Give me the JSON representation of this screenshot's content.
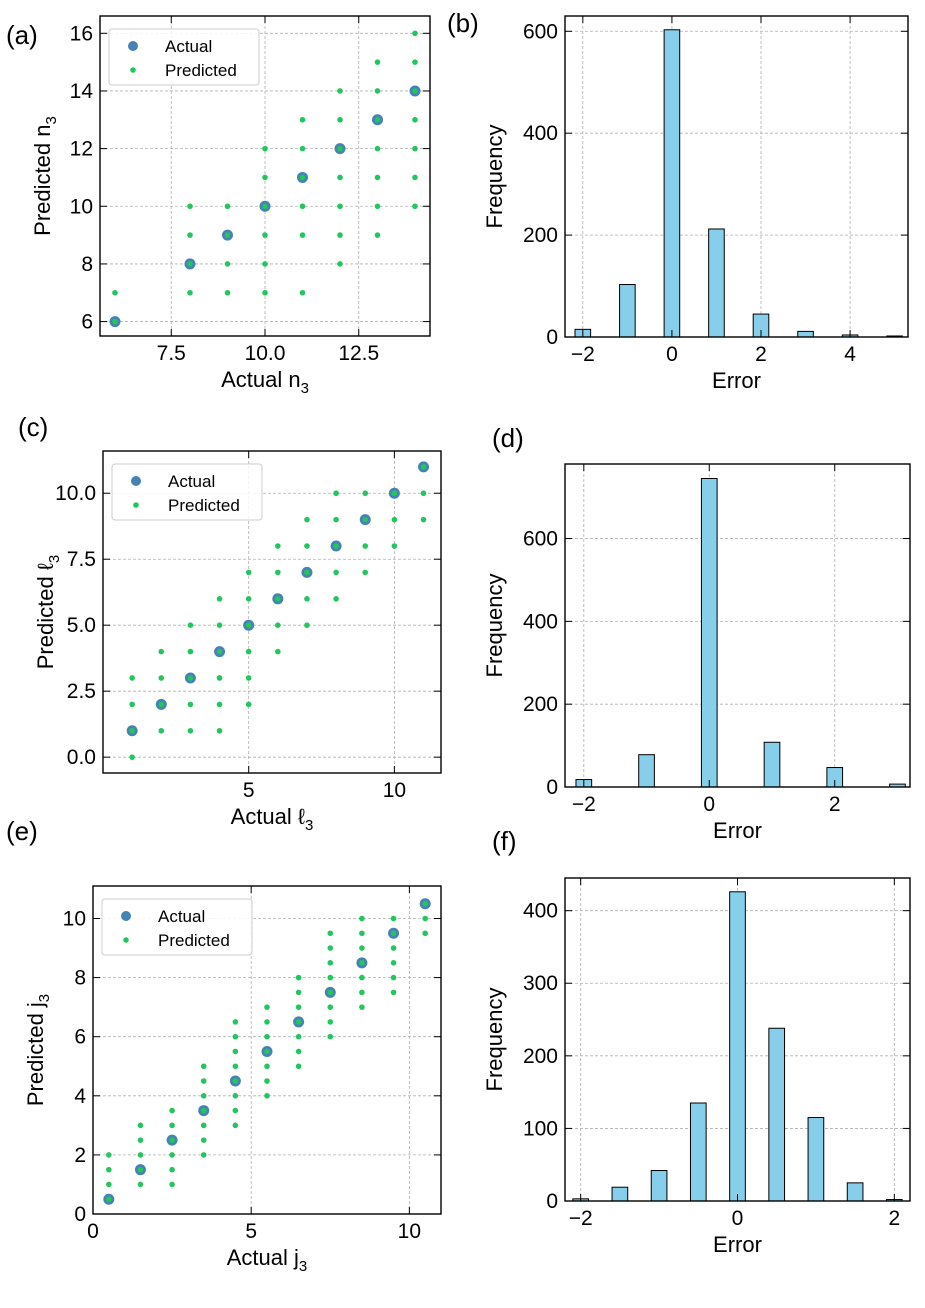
{
  "chart_data": [
    {
      "id": "a",
      "panel_label": "(a)",
      "type": "scatter",
      "xlabel": "Actual n",
      "ylabel": "Predicted n",
      "var_sub": "3",
      "xlim": [
        5.6,
        14.4
      ],
      "ylim": [
        5.5,
        16.6
      ],
      "xticks": [
        7.5,
        10.0,
        12.5
      ],
      "xtick_labels": [
        "7.5",
        "10.0",
        "12.5"
      ],
      "yticks": [
        6,
        8,
        10,
        12,
        14,
        16
      ],
      "ytick_labels": [
        "6",
        "8",
        "10",
        "12",
        "14",
        "16"
      ],
      "legend": [
        "Actual",
        "Predicted"
      ],
      "legend_position": "upper-left",
      "series": [
        {
          "name": "Actual",
          "color": "#4682b4",
          "points": [
            [
              6,
              6
            ],
            [
              8,
              8
            ],
            [
              9,
              9
            ],
            [
              10,
              10
            ],
            [
              11,
              11
            ],
            [
              12,
              12
            ],
            [
              13,
              13
            ],
            [
              14,
              14
            ]
          ]
        },
        {
          "name": "Predicted",
          "color": "#22c55e",
          "points": [
            [
              6,
              6
            ],
            [
              6,
              7
            ],
            [
              8,
              7
            ],
            [
              8,
              8
            ],
            [
              8,
              9
            ],
            [
              8,
              10
            ],
            [
              9,
              7
            ],
            [
              9,
              8
            ],
            [
              9,
              9
            ],
            [
              9,
              10
            ],
            [
              10,
              7
            ],
            [
              10,
              8
            ],
            [
              10,
              9
            ],
            [
              10,
              10
            ],
            [
              10,
              11
            ],
            [
              10,
              12
            ],
            [
              11,
              7
            ],
            [
              11,
              9
            ],
            [
              11,
              10
            ],
            [
              11,
              11
            ],
            [
              11,
              12
            ],
            [
              11,
              13
            ],
            [
              12,
              8
            ],
            [
              12,
              9
            ],
            [
              12,
              10
            ],
            [
              12,
              11
            ],
            [
              12,
              12
            ],
            [
              12,
              13
            ],
            [
              12,
              14
            ],
            [
              13,
              9
            ],
            [
              13,
              10
            ],
            [
              13,
              11
            ],
            [
              13,
              12
            ],
            [
              13,
              13
            ],
            [
              13,
              14
            ],
            [
              13,
              15
            ],
            [
              14,
              10
            ],
            [
              14,
              11
            ],
            [
              14,
              12
            ],
            [
              14,
              13
            ],
            [
              14,
              14
            ],
            [
              14,
              15
            ],
            [
              14,
              16
            ]
          ]
        }
      ]
    },
    {
      "id": "b",
      "panel_label": "(b)",
      "type": "bar",
      "xlabel": "Error",
      "ylabel": "Frequency",
      "xlim": [
        -2.4,
        5.3
      ],
      "ylim": [
        0,
        630
      ],
      "xticks": [
        -2,
        0,
        2,
        4
      ],
      "xtick_labels": [
        "−2",
        "0",
        "2",
        "4"
      ],
      "yticks": [
        0,
        200,
        400,
        600
      ],
      "ytick_labels": [
        "0",
        "200",
        "400",
        "600"
      ],
      "bar_width": 0.35,
      "categories": [
        -2,
        -1,
        0,
        1,
        2,
        3,
        4,
        5
      ],
      "values": [
        15,
        103,
        603,
        212,
        45,
        11,
        4,
        2
      ]
    },
    {
      "id": "c",
      "panel_label": "(c)",
      "type": "scatter",
      "xlabel": "Actual ℓ",
      "ylabel": "Predicted ℓ",
      "var_sub": "3",
      "xlim": [
        0.0,
        11.6
      ],
      "ylim": [
        -0.6,
        11.6
      ],
      "xticks": [
        5,
        10
      ],
      "xtick_labels": [
        "5",
        "10"
      ],
      "yticks": [
        0.0,
        2.5,
        5.0,
        7.5,
        10.0
      ],
      "ytick_labels": [
        "0.0",
        "2.5",
        "5.0",
        "7.5",
        "10.0"
      ],
      "legend": [
        "Actual",
        "Predicted"
      ],
      "legend_position": "upper-left",
      "series": [
        {
          "name": "Actual",
          "color": "#4682b4",
          "points": [
            [
              1,
              1
            ],
            [
              2,
              2
            ],
            [
              3,
              3
            ],
            [
              4,
              4
            ],
            [
              5,
              5
            ],
            [
              6,
              6
            ],
            [
              7,
              7
            ],
            [
              8,
              8
            ],
            [
              9,
              9
            ],
            [
              10,
              10
            ],
            [
              11,
              11
            ]
          ]
        },
        {
          "name": "Predicted",
          "color": "#22c55e",
          "points": [
            [
              1,
              0
            ],
            [
              1,
              1
            ],
            [
              1,
              2
            ],
            [
              1,
              3
            ],
            [
              2,
              1
            ],
            [
              2,
              2
            ],
            [
              2,
              3
            ],
            [
              2,
              4
            ],
            [
              3,
              1
            ],
            [
              3,
              2
            ],
            [
              3,
              3
            ],
            [
              3,
              4
            ],
            [
              3,
              5
            ],
            [
              4,
              1
            ],
            [
              4,
              2
            ],
            [
              4,
              3
            ],
            [
              4,
              4
            ],
            [
              4,
              5
            ],
            [
              4,
              6
            ],
            [
              5,
              2
            ],
            [
              5,
              3
            ],
            [
              5,
              4
            ],
            [
              5,
              5
            ],
            [
              5,
              6
            ],
            [
              5,
              7
            ],
            [
              6,
              4
            ],
            [
              6,
              5
            ],
            [
              6,
              6
            ],
            [
              6,
              7
            ],
            [
              6,
              8
            ],
            [
              7,
              5
            ],
            [
              7,
              6
            ],
            [
              7,
              7
            ],
            [
              7,
              8
            ],
            [
              7,
              9
            ],
            [
              8,
              6
            ],
            [
              8,
              7
            ],
            [
              8,
              8
            ],
            [
              8,
              9
            ],
            [
              8,
              10
            ],
            [
              9,
              7
            ],
            [
              9,
              8
            ],
            [
              9,
              9
            ],
            [
              9,
              10
            ],
            [
              10,
              8
            ],
            [
              10,
              9
            ],
            [
              10,
              10
            ],
            [
              11,
              9
            ],
            [
              11,
              10
            ],
            [
              11,
              11
            ]
          ]
        }
      ]
    },
    {
      "id": "d",
      "panel_label": "(d)",
      "type": "bar",
      "xlabel": "Error",
      "ylabel": "Frequency",
      "xlim": [
        -2.3,
        3.2
      ],
      "ylim": [
        0,
        780
      ],
      "xticks": [
        -2,
        0,
        2
      ],
      "xtick_labels": [
        "−2",
        "0",
        "2"
      ],
      "yticks": [
        0,
        200,
        400,
        600
      ],
      "ytick_labels": [
        "0",
        "200",
        "400",
        "600"
      ],
      "bar_width": 0.25,
      "categories": [
        -2,
        -1,
        0,
        1,
        2,
        3
      ],
      "values": [
        18,
        78,
        745,
        108,
        47,
        7
      ]
    },
    {
      "id": "e",
      "panel_label": "(e)",
      "type": "scatter",
      "xlabel": "Actual j",
      "ylabel": "Predicted j",
      "var_sub": "3",
      "xlim": [
        0,
        11
      ],
      "ylim": [
        0,
        11.1
      ],
      "xticks": [
        0,
        5,
        10
      ],
      "xtick_labels": [
        "0",
        "5",
        "10"
      ],
      "yticks": [
        0,
        2,
        4,
        6,
        8,
        10
      ],
      "ytick_labels": [
        "0",
        "2",
        "4",
        "6",
        "8",
        "10"
      ],
      "legend": [
        "Actual",
        "Predicted"
      ],
      "legend_position": "upper-left",
      "series": [
        {
          "name": "Actual",
          "color": "#4682b4",
          "points": [
            [
              0.5,
              0.5
            ],
            [
              1.5,
              1.5
            ],
            [
              2.5,
              2.5
            ],
            [
              3.5,
              3.5
            ],
            [
              4.5,
              4.5
            ],
            [
              5.5,
              5.5
            ],
            [
              6.5,
              6.5
            ],
            [
              7.5,
              7.5
            ],
            [
              8.5,
              8.5
            ],
            [
              9.5,
              9.5
            ],
            [
              10.5,
              10.5
            ]
          ]
        },
        {
          "name": "Predicted",
          "color": "#22c55e",
          "points": [
            [
              0.5,
              0.5
            ],
            [
              0.5,
              1.0
            ],
            [
              0.5,
              1.5
            ],
            [
              0.5,
              2.0
            ],
            [
              1.5,
              1.0
            ],
            [
              1.5,
              1.5
            ],
            [
              1.5,
              2.0
            ],
            [
              1.5,
              2.5
            ],
            [
              1.5,
              3.0
            ],
            [
              2.5,
              1.0
            ],
            [
              2.5,
              1.5
            ],
            [
              2.5,
              2.0
            ],
            [
              2.5,
              2.5
            ],
            [
              2.5,
              3.0
            ],
            [
              2.5,
              3.5
            ],
            [
              3.5,
              2.0
            ],
            [
              3.5,
              2.5
            ],
            [
              3.5,
              3.0
            ],
            [
              3.5,
              3.5
            ],
            [
              3.5,
              4.0
            ],
            [
              3.5,
              4.5
            ],
            [
              3.5,
              5.0
            ],
            [
              4.5,
              3.0
            ],
            [
              4.5,
              3.5
            ],
            [
              4.5,
              4.0
            ],
            [
              4.5,
              4.5
            ],
            [
              4.5,
              5.0
            ],
            [
              4.5,
              5.5
            ],
            [
              4.5,
              6.0
            ],
            [
              4.5,
              6.5
            ],
            [
              5.5,
              4.0
            ],
            [
              5.5,
              4.5
            ],
            [
              5.5,
              5.0
            ],
            [
              5.5,
              5.5
            ],
            [
              5.5,
              6.0
            ],
            [
              5.5,
              6.5
            ],
            [
              5.5,
              7.0
            ],
            [
              6.5,
              5.0
            ],
            [
              6.5,
              5.5
            ],
            [
              6.5,
              6.0
            ],
            [
              6.5,
              6.5
            ],
            [
              6.5,
              7.0
            ],
            [
              6.5,
              7.5
            ],
            [
              6.5,
              8.0
            ],
            [
              7.5,
              6.0
            ],
            [
              7.5,
              6.5
            ],
            [
              7.5,
              7.0
            ],
            [
              7.5,
              7.5
            ],
            [
              7.5,
              8.0
            ],
            [
              7.5,
              8.5
            ],
            [
              7.5,
              9.0
            ],
            [
              7.5,
              9.5
            ],
            [
              8.5,
              7.0
            ],
            [
              8.5,
              7.5
            ],
            [
              8.5,
              8.0
            ],
            [
              8.5,
              8.5
            ],
            [
              8.5,
              9.0
            ],
            [
              8.5,
              9.5
            ],
            [
              8.5,
              10.0
            ],
            [
              9.5,
              7.5
            ],
            [
              9.5,
              8.0
            ],
            [
              9.5,
              8.5
            ],
            [
              9.5,
              9.0
            ],
            [
              9.5,
              9.5
            ],
            [
              9.5,
              10.0
            ],
            [
              10.5,
              9.5
            ],
            [
              10.5,
              10.0
            ],
            [
              10.5,
              10.5
            ]
          ]
        }
      ]
    },
    {
      "id": "f",
      "panel_label": "(f)",
      "type": "bar",
      "xlabel": "Error",
      "ylabel": "Frequency",
      "xlim": [
        -2.2,
        2.2
      ],
      "ylim": [
        0,
        445
      ],
      "xticks": [
        -2,
        0,
        2
      ],
      "xtick_labels": [
        "−2",
        "0",
        "2"
      ],
      "yticks": [
        0,
        100,
        200,
        300,
        400
      ],
      "ytick_labels": [
        "0",
        "100",
        "200",
        "300",
        "400"
      ],
      "bar_width": 0.2,
      "categories": [
        -2.0,
        -1.5,
        -1.0,
        -0.5,
        0.0,
        0.5,
        1.0,
        1.5,
        2.0
      ],
      "values": [
        3,
        19,
        42,
        135,
        426,
        238,
        115,
        25,
        2
      ]
    }
  ]
}
